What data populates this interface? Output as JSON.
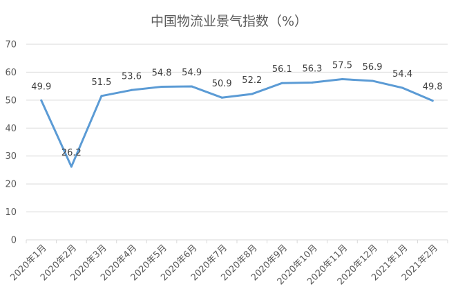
{
  "chart_data": {
    "type": "line",
    "title": "中国物流业景气指数（%）",
    "xlabel": "",
    "ylabel": "",
    "ylim": [
      0,
      70
    ],
    "yticks": [
      0,
      10,
      20,
      30,
      40,
      50,
      60,
      70
    ],
    "grid": true,
    "legend": "none",
    "categories": [
      "2020年1月",
      "2020年2月",
      "2020年3月",
      "2020年4月",
      "2020年5月",
      "2020年6月",
      "2020年7月",
      "2020年8月",
      "2020年9月",
      "2020年10月",
      "2020年11月",
      "2020年12月",
      "2021年1月",
      "2021年2月"
    ],
    "series": [
      {
        "values": [
          49.9,
          26.2,
          51.5,
          53.6,
          54.8,
          54.9,
          50.9,
          52.2,
          56.1,
          56.3,
          57.5,
          56.9,
          54.4,
          49.8
        ],
        "labels": [
          "49.9",
          "26.2",
          "51.5",
          "53.6",
          "54.8",
          "54.9",
          "50.9",
          "52.2",
          "56.1",
          "56.3",
          "57.5",
          "56.9",
          "54.4",
          "49.8"
        ],
        "color": "#5b9bd5"
      }
    ]
  }
}
